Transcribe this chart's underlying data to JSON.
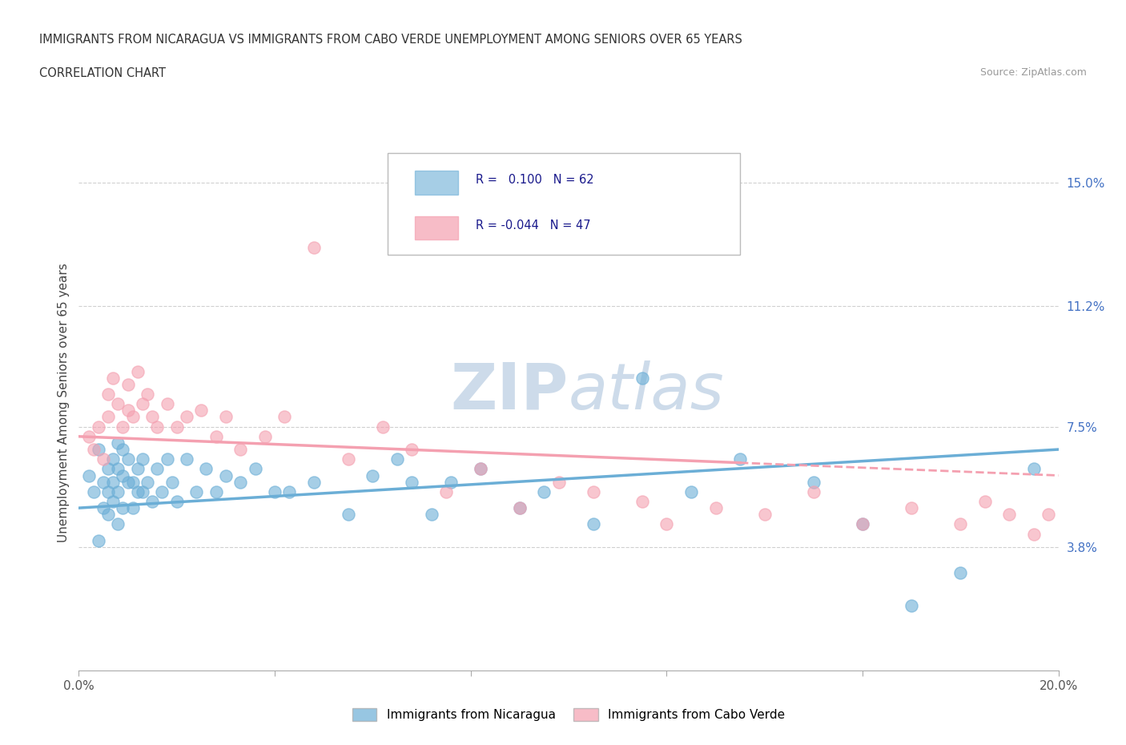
{
  "title_line1": "IMMIGRANTS FROM NICARAGUA VS IMMIGRANTS FROM CABO VERDE UNEMPLOYMENT AMONG SENIORS OVER 65 YEARS",
  "title_line2": "CORRELATION CHART",
  "source_text": "Source: ZipAtlas.com",
  "ylabel": "Unemployment Among Seniors over 65 years",
  "xlim": [
    0.0,
    0.2
  ],
  "ylim": [
    0.0,
    0.165
  ],
  "xticks": [
    0.0,
    0.04,
    0.08,
    0.12,
    0.16,
    0.2
  ],
  "ytick_positions": [
    0.038,
    0.075,
    0.112,
    0.15
  ],
  "ytick_labels": [
    "3.8%",
    "7.5%",
    "11.2%",
    "15.0%"
  ],
  "nicaragua_color": "#6baed6",
  "cabo_verde_color": "#f4a0b0",
  "nicaragua_R": 0.1,
  "nicaragua_N": 62,
  "cabo_verde_R": -0.044,
  "cabo_verde_N": 47,
  "legend_nicaragua": "Immigrants from Nicaragua",
  "legend_cabo_verde": "Immigrants from Cabo Verde",
  "nicaragua_scatter_x": [
    0.002,
    0.003,
    0.004,
    0.004,
    0.005,
    0.005,
    0.006,
    0.006,
    0.006,
    0.007,
    0.007,
    0.007,
    0.008,
    0.008,
    0.008,
    0.008,
    0.009,
    0.009,
    0.009,
    0.01,
    0.01,
    0.011,
    0.011,
    0.012,
    0.012,
    0.013,
    0.013,
    0.014,
    0.015,
    0.016,
    0.017,
    0.018,
    0.019,
    0.02,
    0.022,
    0.024,
    0.026,
    0.028,
    0.03,
    0.033,
    0.036,
    0.04,
    0.043,
    0.048,
    0.055,
    0.06,
    0.065,
    0.068,
    0.072,
    0.076,
    0.082,
    0.09,
    0.095,
    0.105,
    0.115,
    0.125,
    0.135,
    0.15,
    0.16,
    0.17,
    0.18,
    0.195
  ],
  "nicaragua_scatter_y": [
    0.06,
    0.055,
    0.04,
    0.068,
    0.05,
    0.058,
    0.048,
    0.055,
    0.062,
    0.052,
    0.058,
    0.065,
    0.045,
    0.055,
    0.062,
    0.07,
    0.05,
    0.06,
    0.068,
    0.058,
    0.065,
    0.05,
    0.058,
    0.055,
    0.062,
    0.055,
    0.065,
    0.058,
    0.052,
    0.062,
    0.055,
    0.065,
    0.058,
    0.052,
    0.065,
    0.055,
    0.062,
    0.055,
    0.06,
    0.058,
    0.062,
    0.055,
    0.055,
    0.058,
    0.048,
    0.06,
    0.065,
    0.058,
    0.048,
    0.058,
    0.062,
    0.05,
    0.055,
    0.045,
    0.09,
    0.055,
    0.065,
    0.058,
    0.045,
    0.02,
    0.03,
    0.062
  ],
  "cabo_verde_scatter_x": [
    0.002,
    0.003,
    0.004,
    0.005,
    0.006,
    0.006,
    0.007,
    0.008,
    0.009,
    0.01,
    0.01,
    0.011,
    0.012,
    0.013,
    0.014,
    0.015,
    0.016,
    0.018,
    0.02,
    0.022,
    0.025,
    0.028,
    0.03,
    0.033,
    0.038,
    0.042,
    0.048,
    0.055,
    0.062,
    0.068,
    0.075,
    0.082,
    0.09,
    0.098,
    0.105,
    0.115,
    0.12,
    0.13,
    0.14,
    0.15,
    0.16,
    0.17,
    0.18,
    0.185,
    0.19,
    0.195,
    0.198
  ],
  "cabo_verde_scatter_y": [
    0.072,
    0.068,
    0.075,
    0.065,
    0.078,
    0.085,
    0.09,
    0.082,
    0.075,
    0.08,
    0.088,
    0.078,
    0.092,
    0.082,
    0.085,
    0.078,
    0.075,
    0.082,
    0.075,
    0.078,
    0.08,
    0.072,
    0.078,
    0.068,
    0.072,
    0.078,
    0.13,
    0.065,
    0.075,
    0.068,
    0.055,
    0.062,
    0.05,
    0.058,
    0.055,
    0.052,
    0.045,
    0.05,
    0.048,
    0.055,
    0.045,
    0.05,
    0.045,
    0.052,
    0.048,
    0.042,
    0.048
  ],
  "background_color": "#ffffff",
  "grid_color": "#d0d0d0",
  "tick_label_color_y": "#4472c4",
  "nic_line_start_y": 0.05,
  "nic_line_end_y": 0.068,
  "cv_line_start_y": 0.072,
  "cv_line_end_y": 0.06,
  "cv_line_intersect_x": 0.135
}
